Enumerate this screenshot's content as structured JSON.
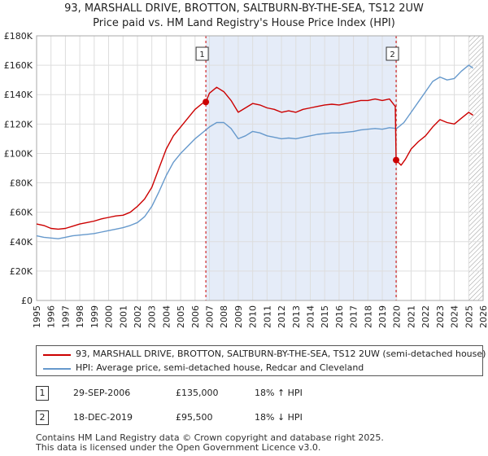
{
  "chart_data": {
    "type": "line",
    "title": "93, MARSHALL DRIVE, BROTTON, SALTBURN-BY-THE-SEA, TS12 2UW",
    "subtitle": "Price paid vs. HM Land Registry's House Price Index (HPI)",
    "xlabel": "",
    "ylabel": "",
    "xlim": [
      1995,
      2026
    ],
    "ylim": [
      0,
      180000
    ],
    "x_ticks": [
      1995,
      1996,
      1997,
      1998,
      1999,
      2000,
      2001,
      2002,
      2003,
      2004,
      2005,
      2006,
      2007,
      2008,
      2009,
      2010,
      2011,
      2012,
      2013,
      2014,
      2015,
      2016,
      2017,
      2018,
      2019,
      2020,
      2021,
      2022,
      2023,
      2024,
      2025,
      2026
    ],
    "y_ticks": [
      0,
      20000,
      40000,
      60000,
      80000,
      100000,
      120000,
      140000,
      160000,
      180000
    ],
    "y_tick_labels": [
      "£0",
      "£20K",
      "£40K",
      "£60K",
      "£80K",
      "£100K",
      "£120K",
      "£140K",
      "£160K",
      "£180K"
    ],
    "grid": true,
    "highlight_span": [
      2006.75,
      2019.96
    ],
    "future_hatch_from": 2025.0,
    "series": [
      {
        "name": "93, MARSHALL DRIVE, BROTTON, SALTBURN-BY-THE-SEA, TS12 2UW (semi-detached house)",
        "color": "#cc0000",
        "points": [
          [
            1995.0,
            52000
          ],
          [
            1995.5,
            51000
          ],
          [
            1996.0,
            49000
          ],
          [
            1996.5,
            48500
          ],
          [
            1997.0,
            49000
          ],
          [
            1997.5,
            50500
          ],
          [
            1998.0,
            52000
          ],
          [
            1998.5,
            53000
          ],
          [
            1999.0,
            54000
          ],
          [
            1999.5,
            55500
          ],
          [
            2000.0,
            56500
          ],
          [
            2000.5,
            57500
          ],
          [
            2001.0,
            58000
          ],
          [
            2001.5,
            60000
          ],
          [
            2002.0,
            64000
          ],
          [
            2002.5,
            69000
          ],
          [
            2003.0,
            77000
          ],
          [
            2003.5,
            90000
          ],
          [
            2004.0,
            103000
          ],
          [
            2004.5,
            112000
          ],
          [
            2005.0,
            118000
          ],
          [
            2005.5,
            124000
          ],
          [
            2006.0,
            130000
          ],
          [
            2006.5,
            134000
          ],
          [
            2006.75,
            135000
          ],
          [
            2007.0,
            141000
          ],
          [
            2007.5,
            145000
          ],
          [
            2008.0,
            142000
          ],
          [
            2008.5,
            136000
          ],
          [
            2009.0,
            128000
          ],
          [
            2009.5,
            131000
          ],
          [
            2010.0,
            134000
          ],
          [
            2010.5,
            133000
          ],
          [
            2011.0,
            131000
          ],
          [
            2011.5,
            130000
          ],
          [
            2012.0,
            128000
          ],
          [
            2012.5,
            129000
          ],
          [
            2013.0,
            128000
          ],
          [
            2013.5,
            130000
          ],
          [
            2014.0,
            131000
          ],
          [
            2014.5,
            132000
          ],
          [
            2015.0,
            133000
          ],
          [
            2015.5,
            133500
          ],
          [
            2016.0,
            133000
          ],
          [
            2016.5,
            134000
          ],
          [
            2017.0,
            135000
          ],
          [
            2017.5,
            136000
          ],
          [
            2018.0,
            136000
          ],
          [
            2018.5,
            137000
          ],
          [
            2019.0,
            136000
          ],
          [
            2019.5,
            137000
          ],
          [
            2019.9,
            132000
          ],
          [
            2019.96,
            95500
          ],
          [
            2020.3,
            92000
          ],
          [
            2020.6,
            96000
          ],
          [
            2021.0,
            103000
          ],
          [
            2021.5,
            108000
          ],
          [
            2022.0,
            112000
          ],
          [
            2022.5,
            118000
          ],
          [
            2023.0,
            123000
          ],
          [
            2023.5,
            121000
          ],
          [
            2024.0,
            120000
          ],
          [
            2024.5,
            124000
          ],
          [
            2025.0,
            128000
          ],
          [
            2025.3,
            126000
          ]
        ]
      },
      {
        "name": "HPI: Average price, semi-detached house, Redcar and Cleveland",
        "color": "#6699cc",
        "points": [
          [
            1995.0,
            44000
          ],
          [
            1995.5,
            43000
          ],
          [
            1996.0,
            42500
          ],
          [
            1996.5,
            42000
          ],
          [
            1997.0,
            43000
          ],
          [
            1997.5,
            44000
          ],
          [
            1998.0,
            44500
          ],
          [
            1998.5,
            45000
          ],
          [
            1999.0,
            45500
          ],
          [
            1999.5,
            46500
          ],
          [
            2000.0,
            47500
          ],
          [
            2000.5,
            48500
          ],
          [
            2001.0,
            49500
          ],
          [
            2001.5,
            51000
          ],
          [
            2002.0,
            53000
          ],
          [
            2002.5,
            57000
          ],
          [
            2003.0,
            64000
          ],
          [
            2003.5,
            74000
          ],
          [
            2004.0,
            85000
          ],
          [
            2004.5,
            94000
          ],
          [
            2005.0,
            100000
          ],
          [
            2005.5,
            105000
          ],
          [
            2006.0,
            110000
          ],
          [
            2006.5,
            114000
          ],
          [
            2007.0,
            118000
          ],
          [
            2007.5,
            121000
          ],
          [
            2008.0,
            121000
          ],
          [
            2008.5,
            117000
          ],
          [
            2009.0,
            110000
          ],
          [
            2009.5,
            112000
          ],
          [
            2010.0,
            115000
          ],
          [
            2010.5,
            114000
          ],
          [
            2011.0,
            112000
          ],
          [
            2011.5,
            111000
          ],
          [
            2012.0,
            110000
          ],
          [
            2012.5,
            110500
          ],
          [
            2013.0,
            110000
          ],
          [
            2013.5,
            111000
          ],
          [
            2014.0,
            112000
          ],
          [
            2014.5,
            113000
          ],
          [
            2015.0,
            113500
          ],
          [
            2015.5,
            114000
          ],
          [
            2016.0,
            114000
          ],
          [
            2016.5,
            114500
          ],
          [
            2017.0,
            115000
          ],
          [
            2017.5,
            116000
          ],
          [
            2018.0,
            116500
          ],
          [
            2018.5,
            117000
          ],
          [
            2019.0,
            116500
          ],
          [
            2019.5,
            117500
          ],
          [
            2020.0,
            117000
          ],
          [
            2020.5,
            121000
          ],
          [
            2021.0,
            128000
          ],
          [
            2021.5,
            135000
          ],
          [
            2022.0,
            142000
          ],
          [
            2022.5,
            149000
          ],
          [
            2023.0,
            152000
          ],
          [
            2023.5,
            150000
          ],
          [
            2024.0,
            151000
          ],
          [
            2024.5,
            156000
          ],
          [
            2025.0,
            160000
          ],
          [
            2025.3,
            158000
          ]
        ]
      }
    ],
    "markers": [
      {
        "label": "1",
        "x": 2006.75,
        "y": 135000
      },
      {
        "label": "2",
        "x": 2019.96,
        "y": 95500
      }
    ],
    "annotations_color": "#cc0000",
    "hpi_band_color": "#dce6f5"
  },
  "legend": {
    "items": [
      {
        "label": "93, MARSHALL DRIVE, BROTTON, SALTBURN-BY-THE-SEA, TS12 2UW (semi-detached house)",
        "color": "#cc0000"
      },
      {
        "label": "HPI: Average price, semi-detached house, Redcar and Cleveland",
        "color": "#6699cc"
      }
    ]
  },
  "transactions": [
    {
      "badge": "1",
      "date": "29-SEP-2006",
      "price": "£135,000",
      "delta": "18% ↑ HPI"
    },
    {
      "badge": "2",
      "date": "18-DEC-2019",
      "price": "£95,500",
      "delta": "18% ↓ HPI"
    }
  ],
  "footer": {
    "line1": "Contains HM Land Registry data © Crown copyright and database right 2025.",
    "line2": "This data is licensed under the Open Government Licence v3.0."
  }
}
